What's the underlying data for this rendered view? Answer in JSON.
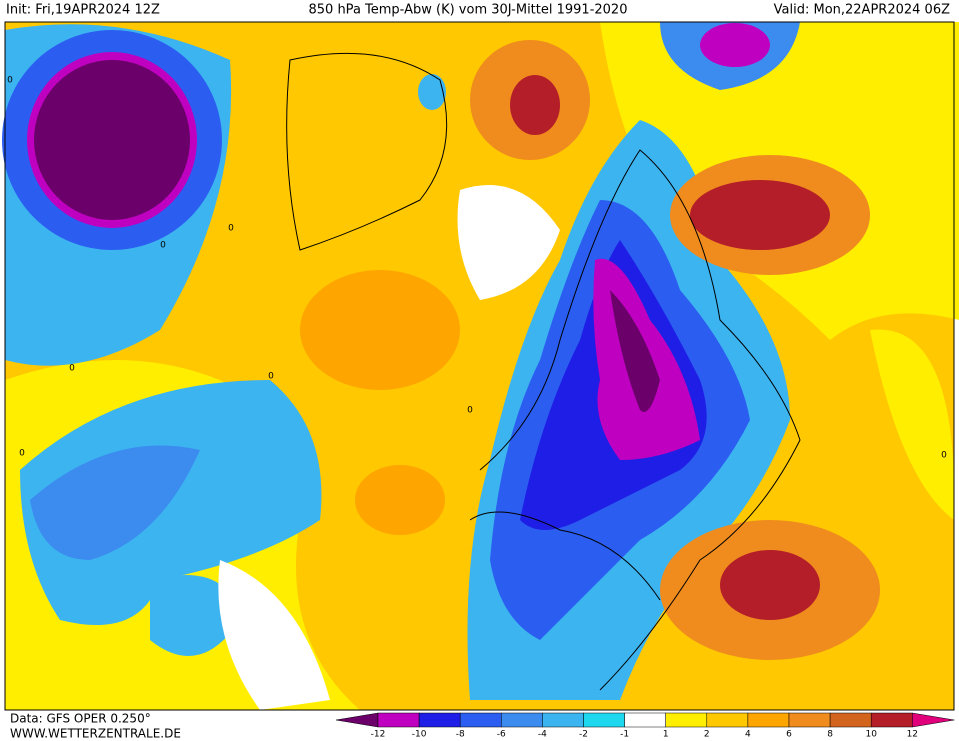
{
  "header": {
    "init": "Init: Fri,19APR2024 12Z",
    "title": "850 hPa Temp-Abw (K) vom 30J-Mittel 1991-2020",
    "valid": "Valid: Mon,22APR2024 06Z"
  },
  "footer": {
    "data": "Data: GFS OPER 0.250°",
    "site": "WWW.WETTERZENTRALE.DE"
  },
  "colorbar": {
    "labels": [
      "-12",
      "-10",
      "-8",
      "-6",
      "-4",
      "-2",
      "-1",
      "1",
      "2",
      "4",
      "6",
      "8",
      "10",
      "12"
    ],
    "colors": [
      "#6b006b",
      "#c000c0",
      "#1e1ee6",
      "#2b5ef0",
      "#3c8cf0",
      "#3cb4f0",
      "#1ed8f0",
      "#ffffff",
      "#ffee00",
      "#ffc800",
      "#ffa500",
      "#f08c1e",
      "#d2641e",
      "#b41e28",
      "#e0007c"
    ]
  },
  "contour_labels": [
    "0",
    "0",
    "0",
    "0",
    "0",
    "0",
    "0",
    "0"
  ]
}
